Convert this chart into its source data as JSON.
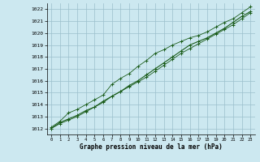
{
  "xlabel": "Graphe pression niveau de la mer (hPa)",
  "background_color": "#cce8f0",
  "grid_color": "#9bbfcc",
  "line_color": "#1a5c1a",
  "x_ticks": [
    0,
    1,
    2,
    3,
    4,
    5,
    6,
    7,
    8,
    9,
    10,
    11,
    12,
    13,
    14,
    15,
    16,
    17,
    18,
    19,
    20,
    21,
    22,
    23
  ],
  "ylim": [
    1011.5,
    1022.5
  ],
  "xlim": [
    -0.5,
    23.5
  ],
  "yticks": [
    1012,
    1013,
    1014,
    1015,
    1016,
    1017,
    1018,
    1019,
    1020,
    1021,
    1022
  ],
  "series_avg": [
    1012.0,
    1012.5,
    1012.8,
    1013.1,
    1013.5,
    1013.8,
    1014.2,
    1014.7,
    1015.1,
    1015.6,
    1016.0,
    1016.5,
    1017.0,
    1017.5,
    1018.0,
    1018.5,
    1019.0,
    1019.3,
    1019.6,
    1020.0,
    1020.4,
    1020.9,
    1021.4,
    1021.8
  ],
  "series_max": [
    1012.1,
    1012.6,
    1013.3,
    1013.6,
    1014.0,
    1014.4,
    1014.8,
    1015.7,
    1016.2,
    1016.6,
    1017.2,
    1017.7,
    1018.3,
    1018.6,
    1019.0,
    1019.3,
    1019.6,
    1019.8,
    1020.1,
    1020.5,
    1020.9,
    1021.2,
    1021.7,
    1022.2
  ],
  "series_min": [
    1012.0,
    1012.4,
    1012.7,
    1013.0,
    1013.4,
    1013.8,
    1014.3,
    1014.7,
    1015.1,
    1015.5,
    1015.9,
    1016.3,
    1016.8,
    1017.3,
    1017.8,
    1018.3,
    1018.7,
    1019.1,
    1019.5,
    1019.9,
    1020.3,
    1020.7,
    1021.2,
    1021.7
  ]
}
